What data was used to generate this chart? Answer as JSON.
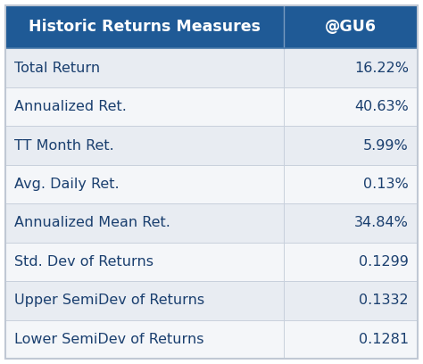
{
  "header_left": "Historic Returns Measures",
  "header_right": "@GU6",
  "rows": [
    [
      "Total Return",
      "16.22%"
    ],
    [
      "Annualized Ret.",
      "40.63%"
    ],
    [
      "TT Month Ret.",
      "5.99%"
    ],
    [
      "Avg. Daily Ret.",
      "0.13%"
    ],
    [
      "Annualized Mean Ret.",
      "34.84%"
    ],
    [
      "Std. Dev of Returns",
      "0.1299"
    ],
    [
      "Upper SemiDev of Returns",
      "0.1332"
    ],
    [
      "Lower SemiDev of Returns",
      "0.1281"
    ]
  ],
  "header_bg": "#1F5A96",
  "header_text_color": "#FFFFFF",
  "row_bg_light": "#E8ECF2",
  "row_bg_white": "#F4F6F9",
  "row_text_color": "#1A3F6F",
  "divider_color": "#C8D0DC",
  "outer_border_color": "#C0C8D4",
  "header_font_size": 12.5,
  "row_font_size": 11.5,
  "col_split": 0.675,
  "fig_width": 4.74,
  "fig_height": 4.08,
  "dpi": 100
}
